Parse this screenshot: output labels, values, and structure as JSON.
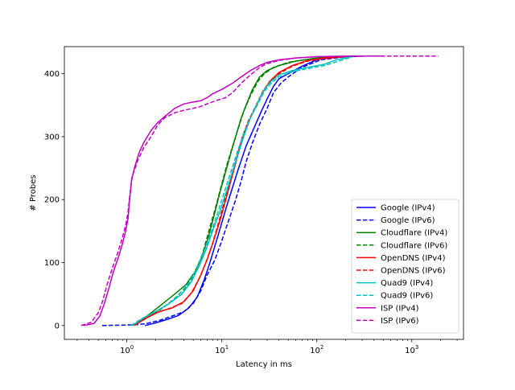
{
  "chart_data": {
    "type": "line",
    "title": "",
    "xlabel": "Latency in ms",
    "ylabel": "# Probes",
    "xscale": "log",
    "xlim": [
      0.22,
      3500
    ],
    "ylim": [
      -22,
      443
    ],
    "grid": false,
    "legend_position": "lower right",
    "x_ticks": [
      {
        "value": 1,
        "label": "10^0"
      },
      {
        "value": 10,
        "label": "10^1"
      },
      {
        "value": 100,
        "label": "10^2"
      },
      {
        "value": 1000,
        "label": "10^3"
      }
    ],
    "y_ticks": [
      0,
      100,
      200,
      300,
      400
    ],
    "series": [
      {
        "name": "Google (IPv4)",
        "color": "#0000ff",
        "style": "solid",
        "points": [
          [
            1.55,
            0
          ],
          [
            2.0,
            4
          ],
          [
            2.7,
            10
          ],
          [
            3.5,
            16
          ],
          [
            4.5,
            28
          ],
          [
            5.5,
            45
          ],
          [
            6.5,
            72
          ],
          [
            7.5,
            100
          ],
          [
            9,
            140
          ],
          [
            11,
            185
          ],
          [
            13,
            220
          ],
          [
            15,
            250
          ],
          [
            18,
            285
          ],
          [
            22,
            315
          ],
          [
            26,
            340
          ],
          [
            30,
            360
          ],
          [
            35,
            380
          ],
          [
            40,
            392
          ],
          [
            50,
            400
          ],
          [
            70,
            412
          ],
          [
            100,
            422
          ],
          [
            150,
            426
          ],
          [
            250,
            428
          ]
        ]
      },
      {
        "name": "Google (IPv6)",
        "color": "#0000ff",
        "style": "dashed",
        "points": [
          [
            0.55,
            0
          ],
          [
            1.2,
            1
          ],
          [
            1.6,
            3
          ],
          [
            2.2,
            8
          ],
          [
            3,
            15
          ],
          [
            4,
            22
          ],
          [
            5,
            35
          ],
          [
            6,
            55
          ],
          [
            7,
            80
          ],
          [
            8.5,
            105
          ],
          [
            10,
            135
          ],
          [
            12,
            170
          ],
          [
            14,
            200
          ],
          [
            16,
            230
          ],
          [
            18,
            260
          ],
          [
            21,
            290
          ],
          [
            25,
            320
          ],
          [
            30,
            345
          ],
          [
            35,
            370
          ],
          [
            42,
            385
          ],
          [
            50,
            395
          ],
          [
            70,
            410
          ],
          [
            110,
            422
          ],
          [
            200,
            427
          ],
          [
            350,
            428
          ]
        ]
      },
      {
        "name": "Cloudflare (IPv4)",
        "color": "#008000",
        "style": "solid",
        "points": [
          [
            1.15,
            0
          ],
          [
            1.4,
            8
          ],
          [
            1.8,
            20
          ],
          [
            2.4,
            35
          ],
          [
            3.2,
            50
          ],
          [
            4.2,
            65
          ],
          [
            5.2,
            85
          ],
          [
            6.2,
            110
          ],
          [
            7.2,
            140
          ],
          [
            8.3,
            175
          ],
          [
            9.5,
            210
          ],
          [
            11,
            245
          ],
          [
            12.5,
            275
          ],
          [
            14,
            300
          ],
          [
            16,
            330
          ],
          [
            18,
            350
          ],
          [
            21,
            375
          ],
          [
            25,
            395
          ],
          [
            30,
            405
          ],
          [
            40,
            413
          ],
          [
            60,
            420
          ],
          [
            100,
            425
          ],
          [
            200,
            428
          ]
        ]
      },
      {
        "name": "Cloudflare (IPv6)",
        "color": "#008000",
        "style": "dashed",
        "points": [
          [
            1.1,
            0
          ],
          [
            1.4,
            6
          ],
          [
            1.9,
            18
          ],
          [
            2.5,
            30
          ],
          [
            3.3,
            45
          ],
          [
            4.3,
            62
          ],
          [
            5.3,
            85
          ],
          [
            6.3,
            115
          ],
          [
            7.3,
            150
          ],
          [
            8.5,
            185
          ],
          [
            9.8,
            220
          ],
          [
            11.3,
            255
          ],
          [
            13,
            285
          ],
          [
            15,
            315
          ],
          [
            17,
            340
          ],
          [
            20,
            365
          ],
          [
            24,
            388
          ],
          [
            28,
            400
          ],
          [
            35,
            410
          ],
          [
            50,
            418
          ],
          [
            80,
            423
          ],
          [
            150,
            427
          ],
          [
            250,
            428
          ]
        ]
      },
      {
        "name": "OpenDNS (IPv4)",
        "color": "#ff0000",
        "style": "solid",
        "points": [
          [
            1.2,
            0
          ],
          [
            1.6,
            12
          ],
          [
            2.2,
            22
          ],
          [
            3,
            28
          ],
          [
            4,
            38
          ],
          [
            5,
            55
          ],
          [
            6,
            80
          ],
          [
            7,
            105
          ],
          [
            8,
            130
          ],
          [
            9.5,
            165
          ],
          [
            11,
            200
          ],
          [
            13,
            240
          ],
          [
            15,
            275
          ],
          [
            17,
            305
          ],
          [
            20,
            330
          ],
          [
            24,
            355
          ],
          [
            28,
            375
          ],
          [
            33,
            390
          ],
          [
            40,
            402
          ],
          [
            55,
            413
          ],
          [
            80,
            421
          ],
          [
            120,
            425
          ],
          [
            200,
            428
          ]
        ]
      },
      {
        "name": "OpenDNS (IPv6)",
        "color": "#ff0000",
        "style": "dashed",
        "points": [
          [
            1.15,
            0
          ],
          [
            1.5,
            10
          ],
          [
            2,
            20
          ],
          [
            2.8,
            27
          ],
          [
            3.8,
            35
          ],
          [
            4.8,
            52
          ],
          [
            5.8,
            75
          ],
          [
            6.8,
            100
          ],
          [
            8,
            130
          ],
          [
            9.3,
            165
          ],
          [
            10.8,
            200
          ],
          [
            12.5,
            235
          ],
          [
            14.5,
            270
          ],
          [
            16.5,
            300
          ],
          [
            19,
            325
          ],
          [
            23,
            350
          ],
          [
            27,
            372
          ],
          [
            32,
            388
          ],
          [
            40,
            400
          ],
          [
            55,
            412
          ],
          [
            80,
            420
          ],
          [
            120,
            424
          ],
          [
            200,
            427
          ],
          [
            300,
            428
          ]
        ]
      },
      {
        "name": "Quad9 (IPv4)",
        "color": "#00bfbf",
        "style": "solid",
        "points": [
          [
            1.15,
            0
          ],
          [
            1.5,
            12
          ],
          [
            2,
            22
          ],
          [
            2.8,
            35
          ],
          [
            3.8,
            50
          ],
          [
            4.8,
            70
          ],
          [
            5.8,
            95
          ],
          [
            6.8,
            120
          ],
          [
            8,
            150
          ],
          [
            9.5,
            180
          ],
          [
            11,
            210
          ],
          [
            13,
            245
          ],
          [
            15,
            275
          ],
          [
            17,
            300
          ],
          [
            20,
            330
          ],
          [
            24,
            355
          ],
          [
            28,
            375
          ],
          [
            33,
            388
          ],
          [
            40,
            398
          ],
          [
            55,
            405
          ],
          [
            80,
            410
          ],
          [
            120,
            415
          ],
          [
            160,
            422
          ],
          [
            250,
            428
          ]
        ]
      },
      {
        "name": "Quad9 (IPv6)",
        "color": "#00bfbf",
        "style": "dashed",
        "points": [
          [
            1.1,
            0
          ],
          [
            1.4,
            10
          ],
          [
            1.9,
            20
          ],
          [
            2.6,
            32
          ],
          [
            3.5,
            48
          ],
          [
            4.5,
            68
          ],
          [
            5.5,
            92
          ],
          [
            6.5,
            118
          ],
          [
            7.7,
            148
          ],
          [
            9,
            178
          ],
          [
            10.5,
            210
          ],
          [
            12.5,
            245
          ],
          [
            14.5,
            275
          ],
          [
            17,
            305
          ],
          [
            20,
            330
          ],
          [
            24,
            352
          ],
          [
            28,
            372
          ],
          [
            33,
            385
          ],
          [
            40,
            395
          ],
          [
            55,
            403
          ],
          [
            80,
            408
          ],
          [
            120,
            413
          ],
          [
            170,
            420
          ],
          [
            250,
            428
          ]
        ]
      },
      {
        "name": "ISP (IPv4)",
        "color": "#bf00bf",
        "style": "solid",
        "points": [
          [
            0.35,
            0
          ],
          [
            0.45,
            3
          ],
          [
            0.52,
            15
          ],
          [
            0.58,
            35
          ],
          [
            0.65,
            60
          ],
          [
            0.72,
            85
          ],
          [
            0.82,
            110
          ],
          [
            0.9,
            130
          ],
          [
            0.97,
            150
          ],
          [
            1.03,
            170
          ],
          [
            1.07,
            200
          ],
          [
            1.12,
            230
          ],
          [
            1.2,
            250
          ],
          [
            1.35,
            275
          ],
          [
            1.5,
            290
          ],
          [
            1.8,
            310
          ],
          [
            2.1,
            322
          ],
          [
            2.5,
            332
          ],
          [
            3.2,
            345
          ],
          [
            4,
            352
          ],
          [
            5,
            355
          ],
          [
            6,
            357
          ],
          [
            7,
            362
          ],
          [
            8,
            368
          ],
          [
            10,
            375
          ],
          [
            13,
            385
          ],
          [
            16,
            395
          ],
          [
            20,
            405
          ],
          [
            25,
            413
          ],
          [
            30,
            418
          ],
          [
            40,
            422
          ],
          [
            60,
            425
          ],
          [
            100,
            427
          ],
          [
            200,
            428
          ],
          [
            500,
            428
          ]
        ]
      },
      {
        "name": "ISP (IPv6)",
        "color": "#bf00bf",
        "style": "dashed",
        "points": [
          [
            0.33,
            0
          ],
          [
            0.42,
            5
          ],
          [
            0.5,
            20
          ],
          [
            0.56,
            40
          ],
          [
            0.62,
            65
          ],
          [
            0.7,
            90
          ],
          [
            0.8,
            115
          ],
          [
            0.9,
            140
          ],
          [
            0.98,
            162
          ],
          [
            1.03,
            180
          ],
          [
            1.08,
            210
          ],
          [
            1.13,
            235
          ],
          [
            1.3,
            262
          ],
          [
            1.5,
            282
          ],
          [
            1.8,
            300
          ],
          [
            2.1,
            318
          ],
          [
            2.5,
            330
          ],
          [
            3.2,
            338
          ],
          [
            4,
            342
          ],
          [
            5,
            345
          ],
          [
            6,
            348
          ],
          [
            7,
            352
          ],
          [
            9,
            358
          ],
          [
            11,
            362
          ],
          [
            13,
            370
          ],
          [
            16,
            385
          ],
          [
            20,
            398
          ],
          [
            25,
            410
          ],
          [
            30,
            416
          ],
          [
            40,
            421
          ],
          [
            60,
            425
          ],
          [
            100,
            427
          ],
          [
            300,
            428
          ],
          [
            1000,
            428
          ],
          [
            1900,
            428
          ]
        ]
      }
    ]
  }
}
